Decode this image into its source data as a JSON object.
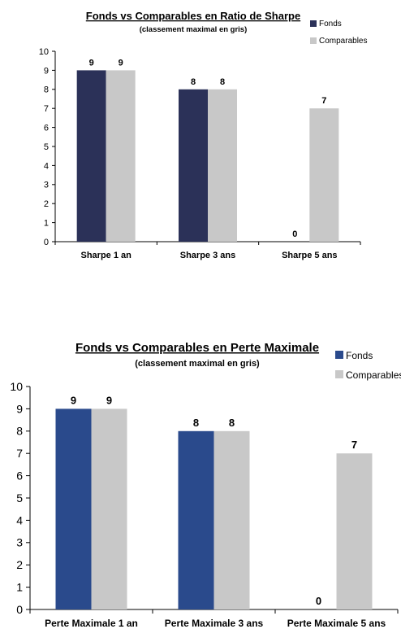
{
  "chart_data": [
    {
      "type": "bar",
      "title": "Fonds vs Comparables en Ratio de Sharpe",
      "subtitle": "(classement maximal en gris)",
      "categories": [
        "Sharpe 1 an",
        "Sharpe 3 ans",
        "Sharpe 5 ans"
      ],
      "series": [
        {
          "name": "Fonds",
          "values": [
            9,
            8,
            0
          ],
          "color": "#2b3158"
        },
        {
          "name": "Comparables",
          "values": [
            9,
            8,
            7
          ],
          "color": "#c8c8c8"
        }
      ],
      "data_labels": [
        [
          "9",
          "8",
          "0"
        ],
        [
          "9",
          "8",
          "7"
        ]
      ],
      "yticks": [
        "0",
        "1",
        "2",
        "3",
        "4",
        "5",
        "6",
        "7",
        "8",
        "9",
        "10"
      ],
      "ylim": [
        0,
        10
      ],
      "xlabel": "",
      "ylabel": "",
      "grid": false,
      "legend": "top-right"
    },
    {
      "type": "bar",
      "title": "Fonds vs Comparables en Perte Maximale",
      "subtitle": "(classement maximal en gris)",
      "categories": [
        "Perte Maximale 1 an",
        "Perte Maximale 3 ans",
        "Perte Maximale 5 ans"
      ],
      "series": [
        {
          "name": "Fonds",
          "values": [
            9,
            8,
            0
          ],
          "color": "#2a4a8c"
        },
        {
          "name": "Comparables",
          "values": [
            9,
            8,
            7
          ],
          "color": "#c8c8c8"
        }
      ],
      "data_labels": [
        [
          "9",
          "8",
          "0"
        ],
        [
          "9",
          "8",
          "7"
        ]
      ],
      "yticks": [
        "0",
        "1",
        "2",
        "3",
        "4",
        "5",
        "6",
        "7",
        "8",
        "9",
        "10"
      ],
      "ylim": [
        0,
        10
      ],
      "xlabel": "",
      "ylabel": "",
      "grid": false,
      "legend": "top-right"
    }
  ]
}
